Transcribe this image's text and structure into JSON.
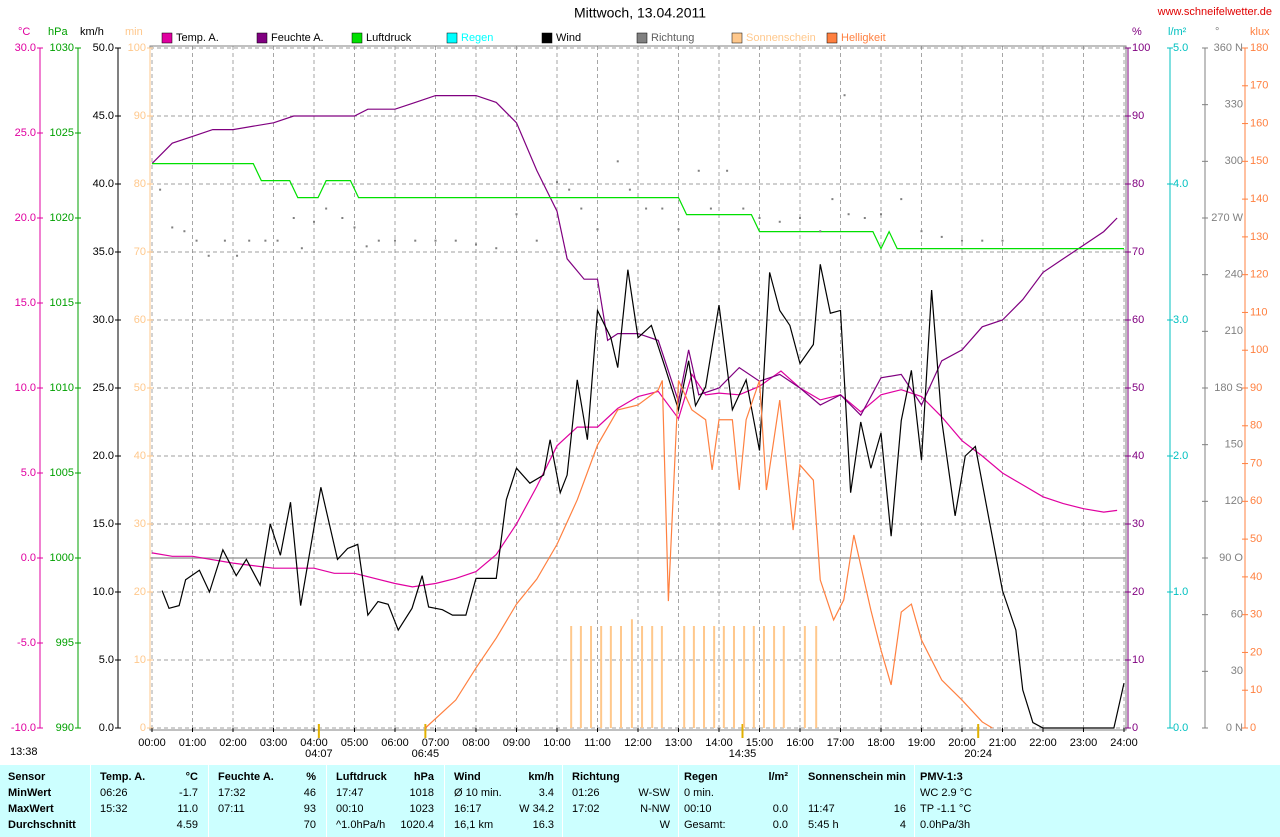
{
  "chart_data": {
    "type": "line",
    "title": "Mittwoch, 13.04.2011",
    "source": "www.schneifelwetter.de",
    "xlim": [
      0,
      24
    ],
    "xticks": [
      {
        "value": 0,
        "label": "00:00"
      },
      {
        "value": 1,
        "label": "01:00"
      },
      {
        "value": 2,
        "label": "02:00"
      },
      {
        "value": 3,
        "label": "03:00"
      },
      {
        "value": 4,
        "label": "04:00"
      },
      {
        "value": 5,
        "label": "05:00"
      },
      {
        "value": 6,
        "label": "06:00"
      },
      {
        "value": 7,
        "label": "07:00"
      },
      {
        "value": 8,
        "label": "08:00"
      },
      {
        "value": 9,
        "label": "09:00"
      },
      {
        "value": 10,
        "label": "10:00"
      },
      {
        "value": 11,
        "label": "11:00"
      },
      {
        "value": 12,
        "label": "12:00"
      },
      {
        "value": 13,
        "label": "13:00"
      },
      {
        "value": 14,
        "label": "14:00"
      },
      {
        "value": 15,
        "label": "15:00"
      },
      {
        "value": 16,
        "label": "16:00"
      },
      {
        "value": 17,
        "label": "17:00"
      },
      {
        "value": 18,
        "label": "18:00"
      },
      {
        "value": 19,
        "label": "19:00"
      },
      {
        "value": 20,
        "label": "20:00"
      },
      {
        "value": 21,
        "label": "21:00"
      },
      {
        "value": 22,
        "label": "22:00"
      },
      {
        "value": 23,
        "label": "23:00"
      },
      {
        "value": 24,
        "label": "24:00"
      }
    ],
    "grid": true,
    "zero_line": true,
    "axes": [
      {
        "label": "°C",
        "color": "#e000a0",
        "lim": [
          -10,
          30
        ],
        "ticks": [
          {
            "value": -10,
            "label": "-10.0"
          },
          {
            "value": -5,
            "label": "-5.0"
          },
          {
            "value": 0,
            "label": "0.0"
          },
          {
            "value": 5,
            "label": "5.0"
          },
          {
            "value": 10,
            "label": "10.0"
          },
          {
            "value": 15,
            "label": "15.0"
          },
          {
            "value": 20,
            "label": "20.0"
          },
          {
            "value": 25,
            "label": "25.0"
          },
          {
            "value": 30,
            "label": "30.0"
          }
        ]
      },
      {
        "label": "hPa",
        "color": "#00a000",
        "lim": [
          990,
          1030
        ],
        "ticks": [
          990,
          995,
          1000,
          1005,
          1010,
          1015,
          1020,
          1025,
          1030
        ]
      },
      {
        "label": "km/h",
        "color": "#000000",
        "lim": [
          0,
          50
        ],
        "ticks": [
          {
            "value": 0,
            "label": "0.0"
          },
          {
            "value": 5,
            "label": "5.0"
          },
          {
            "value": 10,
            "label": "10.0"
          },
          {
            "value": 15,
            "label": "15.0"
          },
          {
            "value": 20,
            "label": "20.0"
          },
          {
            "value": 25,
            "label": "25.0"
          },
          {
            "value": 30,
            "label": "30.0"
          },
          {
            "value": 35,
            "label": "35.0"
          },
          {
            "value": 40,
            "label": "40.0"
          },
          {
            "value": 45,
            "label": "45.0"
          },
          {
            "value": 50,
            "label": "50.0"
          }
        ]
      },
      {
        "label": "min",
        "color": "#ffc88c",
        "lim": [
          0,
          100
        ],
        "ticks": [
          0,
          10,
          20,
          30,
          40,
          50,
          60,
          70,
          80,
          90,
          100
        ]
      },
      {
        "label": "%",
        "color": "#800080",
        "lim": [
          0,
          100
        ],
        "ticks": [
          0,
          10,
          20,
          30,
          40,
          50,
          60,
          70,
          80,
          90,
          100
        ]
      },
      {
        "label": "l/m²",
        "color": "#00c0c0",
        "lim": [
          0,
          5
        ],
        "ticks": [
          {
            "value": 0,
            "label": "0.0"
          },
          {
            "value": 1,
            "label": "1.0"
          },
          {
            "value": 2,
            "label": "2.0"
          },
          {
            "value": 3,
            "label": "3.0"
          },
          {
            "value": 4,
            "label": "4.0"
          },
          {
            "value": 5,
            "label": "5.0"
          }
        ]
      },
      {
        "label": "°",
        "color": "#808080",
        "lim": [
          0,
          360
        ],
        "ticks": [
          {
            "value": 0,
            "label": "0 N"
          },
          30,
          60,
          {
            "value": 90,
            "label": "90 O"
          },
          120,
          150,
          {
            "value": 180,
            "label": "180 S"
          },
          210,
          240,
          {
            "value": 270,
            "label": "270 W"
          },
          300,
          330,
          {
            "value": 360,
            "label": "360 N"
          }
        ]
      },
      {
        "label": "klux",
        "color": "#ff8040",
        "lim": [
          0,
          180
        ],
        "ticks": [
          0,
          10,
          20,
          30,
          40,
          50,
          60,
          70,
          80,
          90,
          100,
          110,
          120,
          130,
          140,
          150,
          160,
          170,
          180
        ]
      }
    ],
    "series": [
      {
        "name": "Temp. A.",
        "color": "#e000a0",
        "axis": 0,
        "style": "line",
        "x": [
          0,
          0.5,
          1,
          2,
          3,
          4,
          4.5,
          5,
          6,
          6.43,
          7,
          7.5,
          8,
          8.5,
          9,
          9.5,
          10,
          10.5,
          11,
          11.5,
          12,
          12.5,
          13,
          13.33,
          13.67,
          14,
          14.5,
          15,
          15.53,
          16,
          16.5,
          17,
          17.5,
          18,
          18.5,
          19,
          19.5,
          20,
          20.5,
          21,
          21.5,
          22,
          22.5,
          23,
          23.5,
          23.83
        ],
        "values": [
          0.3,
          0.1,
          0.1,
          -0.3,
          -0.6,
          -0.6,
          -0.9,
          -0.9,
          -1.5,
          -1.7,
          -1.5,
          -1.2,
          -0.8,
          0.2,
          2.0,
          4.2,
          6.6,
          7.7,
          7.7,
          8.8,
          9.5,
          9.8,
          8.2,
          10.8,
          9.6,
          9.7,
          9.6,
          10.1,
          11.0,
          10.0,
          9.3,
          9.6,
          8.6,
          9.6,
          9.9,
          9.5,
          8.3,
          6.9,
          6.0,
          5.0,
          4.3,
          3.6,
          3.2,
          2.9,
          2.7,
          2.8
        ]
      },
      {
        "name": "Feuchte A.",
        "color": "#800080",
        "axis": 4,
        "style": "line",
        "x": [
          0,
          0.5,
          1,
          1.5,
          2,
          3,
          3.5,
          5,
          5.33,
          6,
          6.5,
          7,
          8,
          8.5,
          9,
          9.5,
          10,
          10.25,
          10.67,
          11,
          11.25,
          11.5,
          12,
          12.5,
          13,
          13.25,
          13.5,
          14,
          14.5,
          15,
          15.5,
          16,
          16.5,
          17,
          17.5,
          18,
          18.5,
          19,
          19.5,
          20,
          20.5,
          21,
          21.5,
          22,
          22.5,
          23,
          23.5,
          23.83
        ],
        "values": [
          83,
          86,
          87,
          88,
          88,
          89,
          90,
          90,
          91,
          91,
          92,
          93,
          93,
          92,
          89,
          82,
          76,
          69,
          66,
          66,
          57,
          58,
          58,
          57,
          48,
          55.6,
          49,
          50,
          53,
          51,
          52,
          50,
          47.5,
          49,
          46,
          51.5,
          52,
          47.5,
          54,
          55.6,
          59,
          60,
          63,
          67,
          69,
          71,
          73,
          75
        ]
      },
      {
        "name": "Luftdruck",
        "color": "#00e000",
        "axis": 1,
        "style": "line",
        "x": [
          0,
          2.5,
          2.7,
          3.4,
          3.6,
          4.1,
          4.3,
          4.9,
          5.1,
          13.0,
          13.2,
          14.8,
          15.0,
          17.8,
          18.0,
          18.2,
          18.4,
          24
        ],
        "values": [
          1023.2,
          1023.2,
          1022.2,
          1022.2,
          1021.2,
          1021.2,
          1022.2,
          1022.2,
          1021.2,
          1021.2,
          1020.2,
          1020.2,
          1019.2,
          1019.2,
          1018.2,
          1019.2,
          1018.2,
          1018.2
        ]
      },
      {
        "name": "Regen",
        "color": "#00ffff",
        "axis": 5,
        "style": "line",
        "x": [],
        "values": []
      },
      {
        "name": "Wind",
        "color": "#000000",
        "axis": 2,
        "style": "line",
        "x": [
          0.25,
          0.42,
          0.67,
          0.83,
          1.17,
          1.42,
          1.75,
          2.08,
          2.33,
          2.67,
          2.92,
          3.17,
          3.42,
          3.67,
          4.17,
          4.58,
          4.83,
          5.08,
          5.33,
          5.58,
          5.83,
          6.08,
          6.42,
          6.67,
          6.83,
          7.17,
          7.42,
          7.75,
          8.0,
          8.5,
          8.75,
          9.0,
          9.33,
          9.67,
          9.83,
          10.08,
          10.25,
          10.5,
          10.75,
          11.0,
          11.33,
          11.5,
          11.75,
          12.0,
          12.33,
          12.67,
          13.0,
          13.25,
          13.42,
          13.67,
          14.0,
          14.33,
          14.67,
          15.0,
          15.25,
          15.5,
          15.75,
          16.0,
          16.33,
          16.5,
          16.75,
          17.0,
          17.25,
          17.5,
          17.75,
          18.0,
          18.25,
          18.5,
          18.75,
          19.0,
          19.25,
          19.5,
          19.83,
          20.08,
          20.33,
          20.67,
          21.0,
          21.33,
          21.5,
          21.75,
          22.0,
          23.75,
          24.0
        ],
        "values": [
          10.1,
          8.8,
          9.0,
          10.9,
          11.6,
          10.0,
          13.1,
          11.2,
          12.4,
          10.5,
          15.0,
          12.7,
          16.6,
          9.0,
          17.7,
          12.4,
          13.2,
          13.5,
          8.3,
          9.3,
          9.1,
          7.2,
          8.8,
          11.2,
          8.9,
          8.7,
          8.3,
          8.3,
          11.0,
          11.0,
          16.8,
          19.1,
          18.0,
          18.6,
          21.2,
          17.3,
          18.6,
          25.6,
          21.2,
          30.7,
          28.7,
          26.5,
          33.7,
          28.7,
          29.6,
          26.5,
          23.4,
          27.0,
          23.7,
          25.1,
          31.1,
          23.4,
          25.6,
          20.4,
          33.5,
          30.7,
          29.6,
          26.8,
          28.2,
          34.1,
          30.5,
          30.7,
          17.3,
          22.5,
          19.1,
          21.7,
          14.1,
          22.6,
          26.3,
          19.7,
          32.2,
          22.6,
          15.6,
          20.0,
          20.7,
          15.3,
          10.1,
          7.2,
          2.8,
          0.4,
          0.0,
          0.0,
          3.3
        ]
      },
      {
        "name": "Richtung",
        "color": "#808080",
        "axis": 6,
        "style": "dots",
        "x": [
          0.2,
          0.5,
          0.8,
          1.1,
          1.4,
          1.8,
          2.1,
          2.4,
          2.8,
          3.1,
          3.5,
          3.7,
          4.0,
          4.3,
          4.7,
          5.0,
          5.3,
          5.6,
          6.0,
          6.5,
          7.0,
          7.5,
          8.0,
          8.5,
          9.0,
          9.5,
          10.0,
          10.3,
          10.6,
          11.0,
          11.5,
          11.8,
          12.2,
          12.6,
          13.0,
          13.5,
          13.8,
          14.2,
          14.6,
          15.0,
          15.5,
          16.0,
          16.5,
          16.8,
          17.1,
          17.2,
          17.6,
          18.0,
          18.5,
          19.0,
          19.5,
          20.0,
          20.5,
          21.0
        ],
        "values": [
          285,
          265,
          263,
          258,
          250,
          258,
          250,
          258,
          258,
          258,
          270,
          254,
          268,
          275,
          270,
          265,
          255,
          258,
          258,
          258,
          258,
          258,
          256,
          254,
          272,
          258,
          289,
          285,
          275,
          264,
          300,
          285,
          275,
          275,
          264,
          295,
          275,
          295,
          275,
          270,
          268,
          270,
          263,
          280,
          335,
          272,
          270,
          272,
          280,
          263,
          260,
          258,
          258,
          258
        ]
      },
      {
        "name": "Sonnenschein",
        "color": "#ffc88c",
        "axis": 3,
        "style": "bars",
        "x": [
          10.35,
          10.59,
          10.84,
          11.09,
          11.33,
          11.58,
          11.85,
          12.1,
          12.35,
          12.59,
          13.14,
          13.38,
          13.63,
          13.88,
          14.12,
          14.37,
          14.62,
          14.86,
          15.11,
          15.36,
          15.6,
          16.12,
          16.4
        ],
        "values": [
          15,
          15,
          15,
          15,
          15,
          15,
          16,
          15,
          15,
          15,
          15,
          15,
          15,
          15,
          15,
          15,
          15,
          15,
          15,
          15,
          15,
          15,
          15
        ]
      },
      {
        "name": "Helligkeit",
        "color": "#ff8040",
        "axis": 7,
        "style": "line",
        "x": [
          6.75,
          7.5,
          8,
          8.5,
          9,
          9.5,
          10,
          10.5,
          11,
          11.5,
          12,
          12.5,
          12.6,
          12.75,
          13.0,
          13.33,
          13.67,
          13.83,
          14.0,
          14.33,
          14.5,
          14.67,
          15.0,
          15.17,
          15.5,
          15.83,
          16.0,
          16.33,
          16.5,
          16.83,
          17.08,
          17.33,
          17.75,
          18.0,
          18.25,
          18.5,
          18.75,
          19.0,
          19.5,
          20.0,
          20.5,
          20.75
        ],
        "values": [
          0,
          7.4,
          15.9,
          23.8,
          32.8,
          39.4,
          48.6,
          60.4,
          74.9,
          84.2,
          85.5,
          89.5,
          92,
          33.6,
          92,
          84.2,
          81.6,
          68.3,
          81.6,
          81.6,
          63.0,
          81.6,
          92,
          63.0,
          86.8,
          52.4,
          69.6,
          65.6,
          39.2,
          28.6,
          33.9,
          51.1,
          31.2,
          20.6,
          11.4,
          30.7,
          32.8,
          23.3,
          12.7,
          7.4,
          1.6,
          0
        ]
      }
    ],
    "annotations": [
      {
        "label": "04:07",
        "x": 4.12
      },
      {
        "label": "06:45",
        "x": 6.75
      },
      {
        "label": "14:35",
        "x": 14.58
      },
      {
        "label": "20:24",
        "x": 20.4
      }
    ],
    "moon_label": "13:38"
  },
  "stats": {
    "header": [
      "Sensor",
      "Temp. A.",
      "°C",
      "Feuchte A.",
      "%",
      "Luftdruck",
      "hPa",
      "Wind",
      "km/h",
      "Richtung",
      null,
      "Regen",
      "l/m²",
      "Sonnenschein min",
      null,
      "PMV-1:3"
    ],
    "rows": [
      [
        "MinWert",
        "06:26",
        "-1.7",
        "17:32",
        "46",
        "17:47",
        "1018",
        "Ø 10 min.",
        "3.4",
        "01:26",
        "W-SW",
        "0 min.",
        null,
        null,
        null,
        "WC 2.9 °C"
      ],
      [
        "MaxWert",
        "15:32",
        "11.0",
        "07:11",
        "93",
        "00:10",
        "1023",
        "16:17",
        "W 34.2",
        "17:02",
        "N-NW",
        "00:10",
        "0.0",
        "11:47",
        "16",
        "TP -1.1 °C"
      ],
      [
        "Durchschnitt",
        null,
        "4.59",
        null,
        "70",
        "^1.0hPa/h",
        "1020.4",
        "16,1 km",
        "16.3",
        null,
        "W",
        "Gesamt:",
        "0.0",
        "5:45 h",
        "4",
        "0.0hPa/3h"
      ]
    ]
  }
}
